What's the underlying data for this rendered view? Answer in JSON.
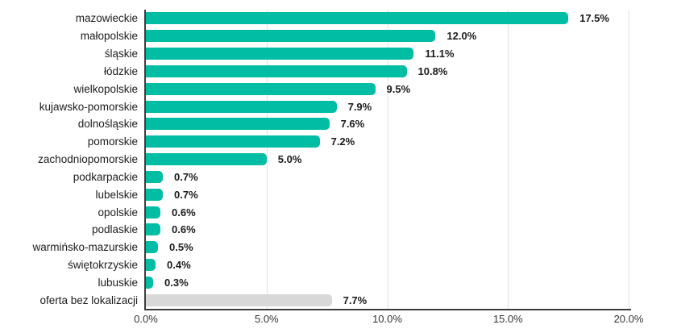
{
  "chart_data": {
    "type": "bar",
    "orientation": "horizontal",
    "title": "",
    "xlabel": "",
    "ylabel": "",
    "xlim": [
      0,
      20
    ],
    "grid": "vertical",
    "legend": "none",
    "categories": [
      "mazowieckie",
      "małopolskie",
      "śląskie",
      "łódzkie",
      "wielkopolskie",
      "kujawsko-pomorskie",
      "dolnośląskie",
      "pomorskie",
      "zachodniopomorskie",
      "podkarpackie",
      "lubelskie",
      "opolskie",
      "podlaskie",
      "warmińsko-mazurskie",
      "świętokrzyskie",
      "lubuskie",
      "oferta bez lokalizacji"
    ],
    "values": [
      17.5,
      12.0,
      11.1,
      10.8,
      9.5,
      7.9,
      7.6,
      7.2,
      5.0,
      0.7,
      0.7,
      0.6,
      0.6,
      0.5,
      0.4,
      0.3,
      7.7
    ],
    "display_values": [
      "17.5%",
      "12.0%",
      "11.1%",
      "10.8%",
      "9.5%",
      "7.9%",
      "7.6%",
      "7.2%",
      "5.0%",
      "0.7%",
      "0.7%",
      "0.6%",
      "0.6%",
      "0.5%",
      "0.4%",
      "0.3%",
      "7.7%"
    ],
    "x_tick_values": [
      0,
      5,
      10,
      15,
      20
    ],
    "x_ticks": [
      "0.0%",
      "5.0%",
      "10.0%",
      "15.0%",
      "20.0%"
    ],
    "bar_color": "#00bda4",
    "special_bar": {
      "label": "oferta bez lokalizacji",
      "color": "#d8d8d8"
    },
    "axis_color": "#3d3d3d",
    "gridline_color": "#e2e2e2",
    "background": "#ffffff"
  }
}
